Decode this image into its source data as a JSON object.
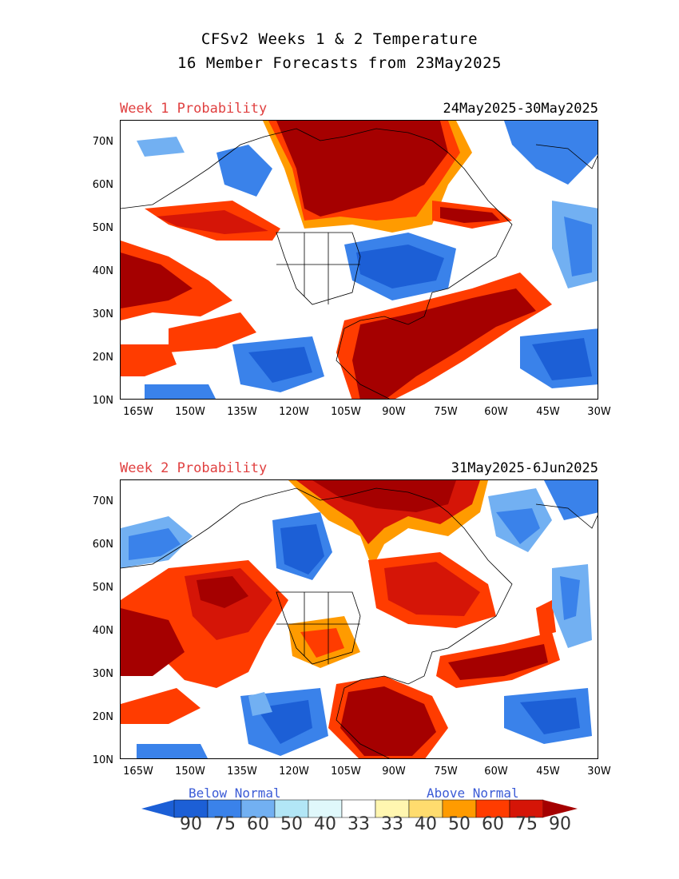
{
  "title": {
    "line1": "CFSv2 Weeks 1 & 2 Temperature",
    "line2": "16 Member Forecasts from 23May2025"
  },
  "panels": [
    {
      "label": "Week 1 Probability",
      "dates": "24May2025-30May2025"
    },
    {
      "label": "Week 2 Probability",
      "dates": "31May2025-6Jun2025"
    }
  ],
  "axes": {
    "lat_ticks": [
      "70N",
      "60N",
      "50N",
      "40N",
      "30N",
      "20N",
      "10N"
    ],
    "lon_ticks": [
      "165W",
      "150W",
      "135W",
      "120W",
      "105W",
      "90W",
      "75W",
      "60W",
      "45W",
      "30W"
    ]
  },
  "legend": {
    "below_label": "Below Normal",
    "above_label": "Above Normal",
    "numbers": [
      "90",
      "75",
      "60",
      "50",
      "40",
      "33",
      "33",
      "40",
      "50",
      "60",
      "75",
      "90"
    ],
    "below_colors": [
      "#1c5fd6",
      "#3a82ea",
      "#72b0f2",
      "#b2e6f6",
      "#e0f8fb"
    ],
    "above_colors": [
      "#fff6b0",
      "#ffdc6e",
      "#ff9b00",
      "#ff3c00",
      "#d51507"
    ],
    "end_below": "#1c5fd6",
    "end_above": "#a50000"
  }
}
